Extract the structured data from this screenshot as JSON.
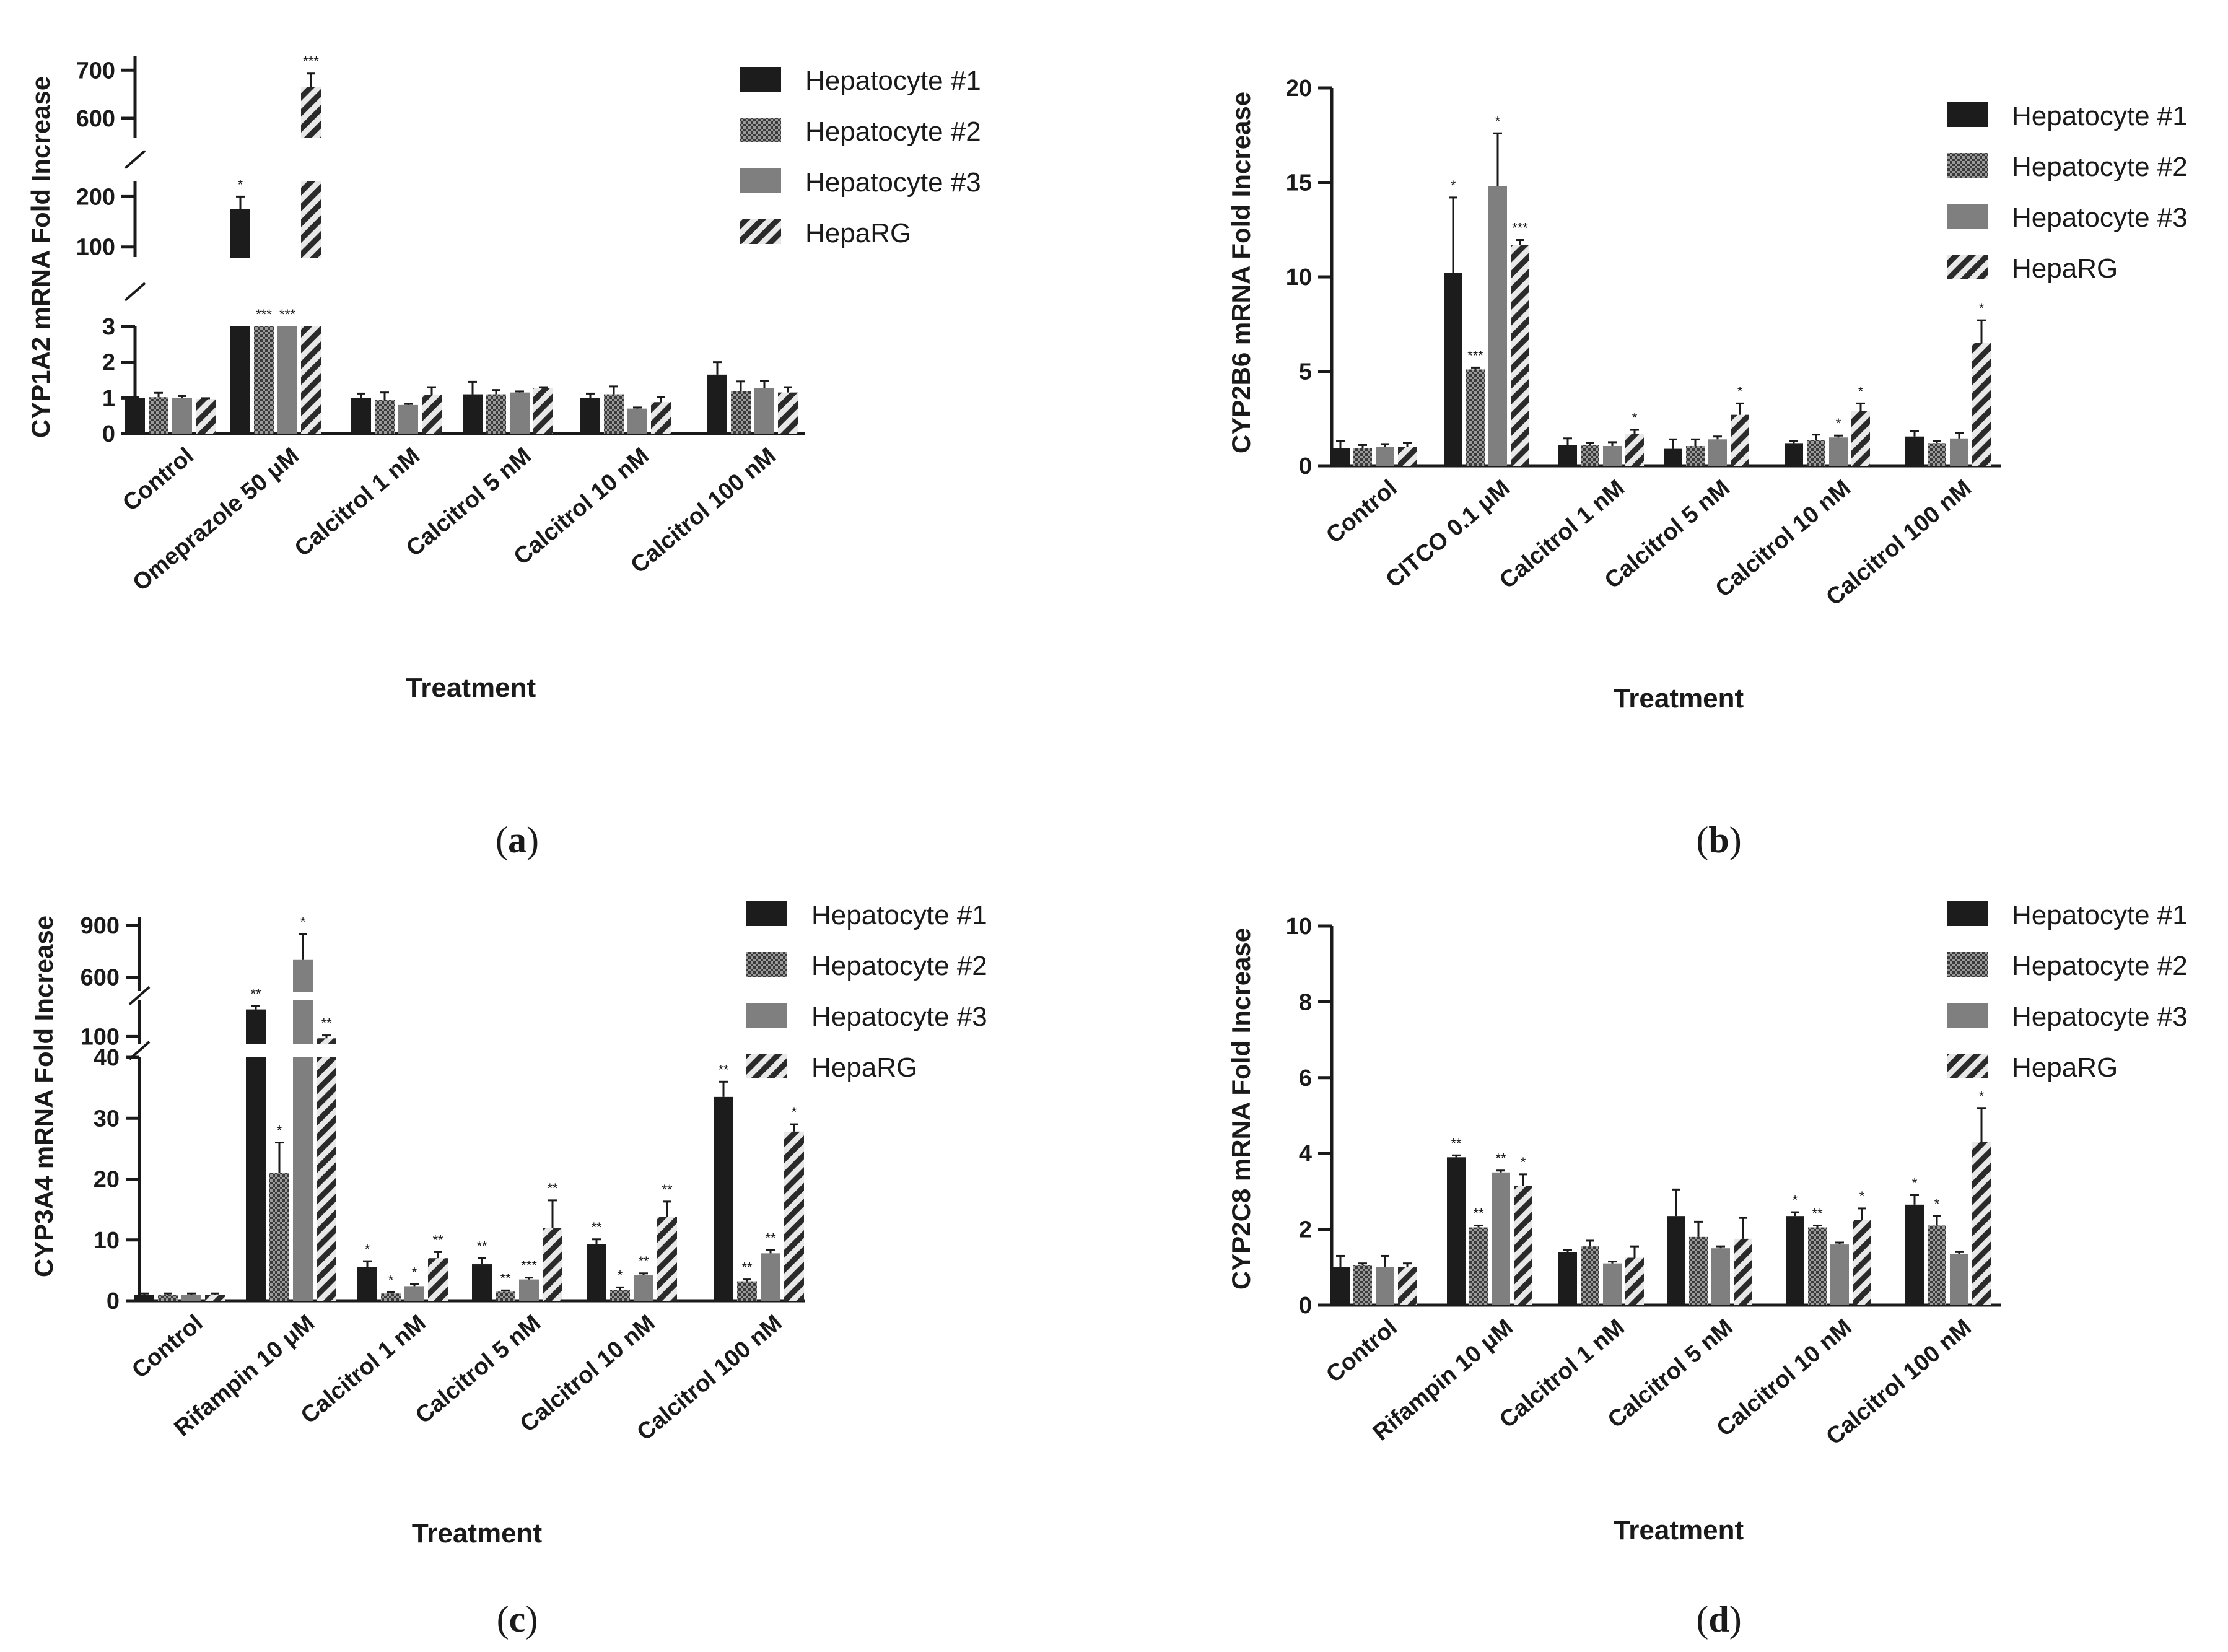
{
  "figure": {
    "panels": [
      {
        "id": "a",
        "caption_label": "a",
        "ylabel": "CYP1A2 mRNA Fold Increase",
        "xlabel": "Treatment",
        "legend": [
          "Hepatocyte #1",
          "Hepatocyte #2",
          "Hepatocyte #3",
          "HepaRG"
        ]
      },
      {
        "id": "b",
        "caption_label": "b",
        "ylabel": "CYP2B6 mRNA Fold Increase",
        "xlabel": "Treatment",
        "legend": [
          "Hepatocyte #1",
          "Hepatocyte #2",
          "Hepatocyte #3",
          "HepaRG"
        ]
      },
      {
        "id": "c",
        "caption_label": "c",
        "ylabel": "CYP3A4 mRNA Fold Increase",
        "xlabel": "Treatment",
        "legend": [
          "Hepatocyte #1",
          "Hepatocyte #2",
          "Hepatocyte #3",
          "HepaRG"
        ]
      },
      {
        "id": "d",
        "caption_label": "d",
        "ylabel": "CYP2C8 mRNA Fold Increase",
        "xlabel": "Treatment",
        "legend": [
          "Hepatocyte #1",
          "Hepatocyte #2",
          "Hepatocyte #3",
          "HepaRG"
        ]
      }
    ]
  },
  "colors": {
    "hep1": "#1c1c1c",
    "hep2_fill": "#9a9a9a",
    "hep2_dot": "#3a3a3a",
    "hep3": "#7f7f7f",
    "heparg_stripe": "#2a2a2a",
    "heparg_bg": "#e8e8e8",
    "axis": "#1a1a1a"
  },
  "chart_data": [
    {
      "panel": "a",
      "type": "bar",
      "title": "",
      "xlabel": "Treatment",
      "ylabel": "CYP1A2 mRNA Fold Increase",
      "categories": [
        "Control",
        "Omeprazole 50 μM",
        "Calcitrol 1 nM",
        "Calcitrol  5 nM",
        "Calcitrol  10 nM",
        "Calcitrol 100 nM"
      ],
      "y_segments": [
        {
          "range": [
            0,
            3
          ],
          "ticks": [
            0,
            1,
            2,
            3
          ]
        },
        {
          "range": [
            80,
            230
          ],
          "ticks": [
            100,
            200
          ]
        },
        {
          "range": [
            560,
            730
          ],
          "ticks": [
            600,
            700
          ]
        }
      ],
      "series": [
        {
          "name": "Hepatocyte #1",
          "values": [
            1.0,
            175,
            1.0,
            1.1,
            1.0,
            1.65
          ],
          "errors": [
            0.03,
            25,
            0.12,
            0.35,
            0.12,
            0.35
          ],
          "sig": [
            "",
            "*",
            "",
            "",
            "",
            ""
          ]
        },
        {
          "name": "Hepatocyte #2",
          "values": [
            1.02,
            60,
            0.95,
            1.1,
            1.1,
            1.18
          ],
          "errors": [
            0.12,
            0,
            0.2,
            0.12,
            0.22,
            0.28
          ],
          "sig": [
            "",
            "***",
            "",
            "",
            "",
            ""
          ]
        },
        {
          "name": "Hepatocyte #3",
          "values": [
            1.0,
            60,
            0.8,
            1.15,
            0.7,
            1.27
          ],
          "errors": [
            0.05,
            0,
            0.03,
            0.03,
            0.03,
            0.2
          ],
          "sig": [
            "",
            "***",
            "",
            "",
            "",
            ""
          ]
        },
        {
          "name": "HepaRG",
          "values": [
            0.97,
            665,
            1.08,
            1.27,
            0.88,
            1.15
          ],
          "errors": [
            0.02,
            28,
            0.22,
            0.03,
            0.15,
            0.15
          ],
          "sig": [
            "",
            "***",
            "",
            "",
            "",
            ""
          ]
        }
      ]
    },
    {
      "panel": "b",
      "type": "bar",
      "title": "",
      "xlabel": "Treatment",
      "ylabel": "CYP2B6 mRNA Fold Increase",
      "categories": [
        "Control",
        "CITCO 0.1 μM",
        "Calcitrol 1 nM",
        "Calcitrol 5 nM",
        "Calcitrol 10 nM",
        "Calcitrol 100 nM"
      ],
      "y_segments": [
        {
          "range": [
            0,
            20
          ],
          "ticks": [
            0,
            5,
            10,
            15,
            20
          ]
        }
      ],
      "series": [
        {
          "name": "Hepatocyte #1",
          "values": [
            0.95,
            10.2,
            1.1,
            0.9,
            1.2,
            1.55
          ],
          "errors": [
            0.35,
            4.0,
            0.35,
            0.5,
            0.1,
            0.3
          ],
          "sig": [
            "",
            "*",
            "",
            "",
            "",
            ""
          ]
        },
        {
          "name": "Hepatocyte #2",
          "values": [
            0.95,
            5.1,
            1.1,
            1.05,
            1.35,
            1.2
          ],
          "errors": [
            0.15,
            0.1,
            0.1,
            0.35,
            0.3,
            0.1
          ],
          "sig": [
            "",
            "***",
            "",
            "",
            "",
            ""
          ]
        },
        {
          "name": "Hepatocyte #3",
          "values": [
            1.0,
            14.8,
            1.05,
            1.4,
            1.5,
            1.45
          ],
          "errors": [
            0.15,
            2.8,
            0.2,
            0.15,
            0.1,
            0.3
          ],
          "sig": [
            "",
            "*",
            "",
            "",
            "*",
            ""
          ]
        },
        {
          "name": "HepaRG",
          "values": [
            1.0,
            11.7,
            1.7,
            2.7,
            2.9,
            6.5
          ],
          "errors": [
            0.2,
            0.25,
            0.2,
            0.6,
            0.4,
            1.2
          ],
          "sig": [
            "",
            "***",
            "*",
            "*",
            "*",
            "*"
          ]
        }
      ]
    },
    {
      "panel": "c",
      "type": "bar",
      "title": "",
      "xlabel": "Treatment",
      "ylabel": "CYP3A4 mRNA Fold Increase",
      "categories": [
        "Control",
        "Rifampin 10 μM",
        "Calcitrol 1 nM",
        "Calcitrol 5 nM",
        "Calcitrol 10 nM",
        "Calcitrol 100 nM"
      ],
      "y_segments": [
        {
          "range": [
            0,
            40
          ],
          "ticks": [
            0,
            10,
            20,
            30,
            40
          ]
        },
        {
          "range": [
            80,
            200
          ],
          "ticks": [
            100
          ]
        },
        {
          "range": [
            520,
            950
          ],
          "ticks": [
            600,
            900
          ]
        }
      ],
      "series": [
        {
          "name": "Hepatocyte #1",
          "values": [
            1.0,
            175,
            5.5,
            6.0,
            9.3,
            33.5
          ],
          "errors": [
            0.2,
            10,
            1.0,
            1.0,
            0.8,
            2.5
          ],
          "sig": [
            "",
            "**",
            "*",
            "**",
            "**",
            "**"
          ]
        },
        {
          "name": "Hepatocyte #2",
          "values": [
            1.0,
            21,
            1.2,
            1.5,
            1.8,
            3.2
          ],
          "errors": [
            0.2,
            5.0,
            0.2,
            0.2,
            0.4,
            0.3
          ],
          "sig": [
            "",
            "*",
            "*",
            "**",
            "*",
            "**"
          ]
        },
        {
          "name": "Hepatocyte #3",
          "values": [
            1.0,
            700,
            2.4,
            3.5,
            4.2,
            7.8
          ],
          "errors": [
            0.2,
            150,
            0.3,
            0.3,
            0.3,
            0.5
          ],
          "sig": [
            "",
            "*",
            "*",
            "***",
            "**",
            "**"
          ]
        },
        {
          "name": "HepaRG",
          "values": [
            1.0,
            95,
            7.0,
            12.0,
            13.8,
            27.8
          ],
          "errors": [
            0.2,
            8,
            1.0,
            4.5,
            2.5,
            1.2
          ],
          "sig": [
            "",
            "**",
            "**",
            "**",
            "**",
            "*"
          ]
        }
      ]
    },
    {
      "panel": "d",
      "type": "bar",
      "title": "",
      "xlabel": "Treatment",
      "ylabel": "CYP2C8 mRNA Fold Increase",
      "categories": [
        "Control",
        "Rifampin 10 μM",
        "Calcitrol 1 nM",
        "Calcitrol 5 nM",
        "Calcitrol 10 nM",
        "Calcitrol 100 nM"
      ],
      "y_segments": [
        {
          "range": [
            0,
            10
          ],
          "ticks": [
            0,
            2,
            4,
            6,
            8,
            10
          ]
        }
      ],
      "series": [
        {
          "name": "Hepatocyte #1",
          "values": [
            1.0,
            3.9,
            1.4,
            2.35,
            2.35,
            2.65
          ],
          "errors": [
            0.3,
            0.05,
            0.05,
            0.7,
            0.1,
            0.25
          ],
          "sig": [
            "",
            "**",
            "",
            "",
            "*",
            "*"
          ]
        },
        {
          "name": "Hepatocyte #2",
          "values": [
            1.05,
            2.05,
            1.55,
            1.8,
            2.05,
            2.1
          ],
          "errors": [
            0.05,
            0.05,
            0.15,
            0.4,
            0.05,
            0.25
          ],
          "sig": [
            "",
            "**",
            "",
            "",
            "**",
            "*"
          ]
        },
        {
          "name": "Hepatocyte #3",
          "values": [
            1.0,
            3.5,
            1.1,
            1.5,
            1.6,
            1.35
          ],
          "errors": [
            0.3,
            0.05,
            0.05,
            0.05,
            0.05,
            0.05
          ],
          "sig": [
            "",
            "**",
            "",
            "",
            "",
            ""
          ]
        },
        {
          "name": "HepaRG",
          "values": [
            1.0,
            3.15,
            1.25,
            1.75,
            2.25,
            4.3
          ],
          "errors": [
            0.1,
            0.3,
            0.3,
            0.55,
            0.3,
            0.9
          ],
          "sig": [
            "",
            "*",
            "",
            "",
            "*",
            "*"
          ]
        }
      ]
    }
  ]
}
